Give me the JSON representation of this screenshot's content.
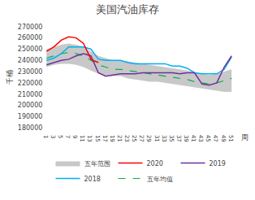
{
  "chart_data": {
    "type": "line",
    "title": "美国汽油库存",
    "ylabel": "千桶",
    "xlabel": "周",
    "x": [
      1,
      3,
      5,
      7,
      9,
      11,
      13,
      15,
      17,
      19,
      21,
      23,
      25,
      27,
      29,
      31,
      33,
      35,
      37,
      39,
      41,
      43,
      45,
      47,
      49,
      51
    ],
    "series": [
      {
        "name": "五年范围",
        "type": "range",
        "color": "#c8c8c8",
        "low": [
          234000,
          236000,
          237000,
          237000,
          236000,
          234000,
          231000,
          228000,
          226000,
          226000,
          226000,
          224000,
          223000,
          222000,
          221000,
          221000,
          220000,
          219000,
          218000,
          217000,
          216000,
          215000,
          214000,
          213000,
          212000,
          212000
        ],
        "high": [
          250000,
          252000,
          254000,
          255000,
          254000,
          252000,
          248000,
          244000,
          242000,
          240000,
          240000,
          239000,
          238000,
          237000,
          236000,
          235000,
          234000,
          233000,
          232000,
          231000,
          229000,
          228000,
          227000,
          228000,
          230000,
          232000
        ]
      },
      {
        "name": "2020",
        "color": "#ff0000",
        "values": [
          248000,
          252000,
          258000,
          261000,
          260000,
          255000,
          241000,
          238000,
          null,
          null,
          null,
          null,
          null,
          null,
          null,
          null,
          null,
          null,
          null,
          null,
          null,
          null,
          null,
          null,
          null,
          null
        ]
      },
      {
        "name": "2019",
        "color": "#7030a0",
        "values": [
          236000,
          238000,
          240000,
          241000,
          244000,
          246000,
          244000,
          229000,
          226000,
          227000,
          228000,
          228000,
          228000,
          229000,
          229000,
          229000,
          229000,
          229000,
          228000,
          229000,
          229000,
          219000,
          218000,
          220000,
          234000,
          244000
        ]
      },
      {
        "name": "2018",
        "color": "#00b0f0",
        "values": [
          240000,
          242000,
          246000,
          252000,
          252000,
          252000,
          250000,
          241000,
          240000,
          240000,
          240000,
          238000,
          237000,
          237000,
          237000,
          237000,
          237000,
          235000,
          235000,
          233000,
          229000,
          228000,
          228000,
          228000,
          232000,
          243000
        ]
      },
      {
        "name": "五年均值",
        "color": "#00b050",
        "line_style": "dashed",
        "values": [
          242000,
          244000,
          246000,
          247000,
          246000,
          244000,
          240000,
          236000,
          234000,
          232000,
          232000,
          231000,
          230000,
          229000,
          228000,
          227000,
          226000,
          225000,
          224000,
          223000,
          221000,
          220000,
          219000,
          220000,
          222000,
          224000
        ]
      }
    ],
    "xlim": [
      0.5,
      52.5
    ],
    "xticks": [
      1,
      3,
      5,
      7,
      9,
      11,
      13,
      15,
      17,
      19,
      21,
      23,
      25,
      27,
      29,
      31,
      33,
      35,
      37,
      39,
      41,
      43,
      45,
      47,
      49,
      51
    ],
    "ylim": [
      178000,
      272000
    ],
    "yticks": [
      180000,
      190000,
      200000,
      210000,
      220000,
      230000,
      240000,
      250000,
      260000,
      270000
    ],
    "grid": false,
    "legend": "bottom"
  }
}
